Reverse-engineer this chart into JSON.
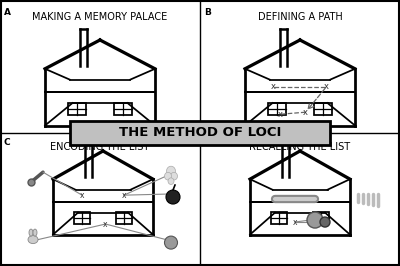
{
  "bg_color": "#ffffff",
  "border_color": "#000000",
  "panel_titles": {
    "A": "MAKING A MEMORY PALACE",
    "B": "DEFINING A PATH",
    "C": "ENCODING THE LIST",
    "D": "RECALLING THE LIST"
  },
  "center_banner": "THE METHOD OF LOCI",
  "banner_bg": "#c0c0c0",
  "banner_text_color": "#000000",
  "title_fontsize": 7.0,
  "banner_fontsize": 9.5,
  "label_fontsize": 6.5
}
